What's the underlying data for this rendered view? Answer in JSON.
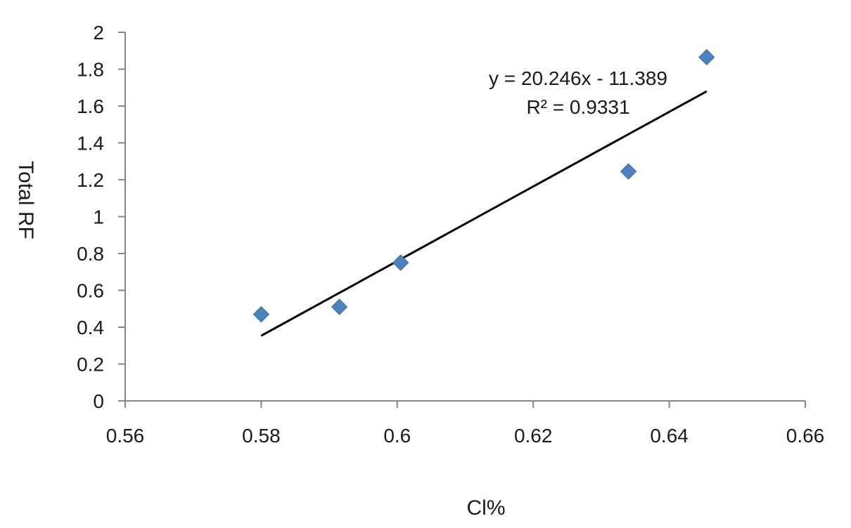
{
  "chart_data": {
    "type": "scatter",
    "title": "",
    "xlabel": "Cl%",
    "ylabel": "Total RF",
    "xlim": [
      0.56,
      0.66
    ],
    "ylim": [
      0,
      2
    ],
    "x_ticks": [
      0.56,
      0.58,
      0.6,
      0.62,
      0.64,
      0.66
    ],
    "x_tick_labels": [
      "0.56",
      "0.58",
      "0.6",
      "0.62",
      "0.64",
      "0.66"
    ],
    "y_ticks": [
      0,
      0.2,
      0.4,
      0.6,
      0.8,
      1,
      1.2,
      1.4,
      1.6,
      1.8,
      2
    ],
    "y_tick_labels": [
      "0",
      "0.2",
      "0.4",
      "0.6",
      "0.8",
      "1",
      "1.2",
      "1.4",
      "1.6",
      "1.8",
      "2"
    ],
    "grid": false,
    "legend": "none",
    "marker": "diamond",
    "series": [
      {
        "x": [
          0.58,
          0.5915,
          0.6005,
          0.634,
          0.6455
        ],
        "y": [
          0.47,
          0.51,
          0.75,
          1.245,
          1.865
        ],
        "color": "#4F81BD"
      }
    ],
    "trendline": {
      "type": "linear",
      "slope": 20.246,
      "intercept": -11.389,
      "x_range": [
        0.58,
        0.6455
      ],
      "color": "#000000"
    },
    "annotations": [
      "y = 20.246x - 11.389",
      "R² = 0.9331"
    ]
  }
}
